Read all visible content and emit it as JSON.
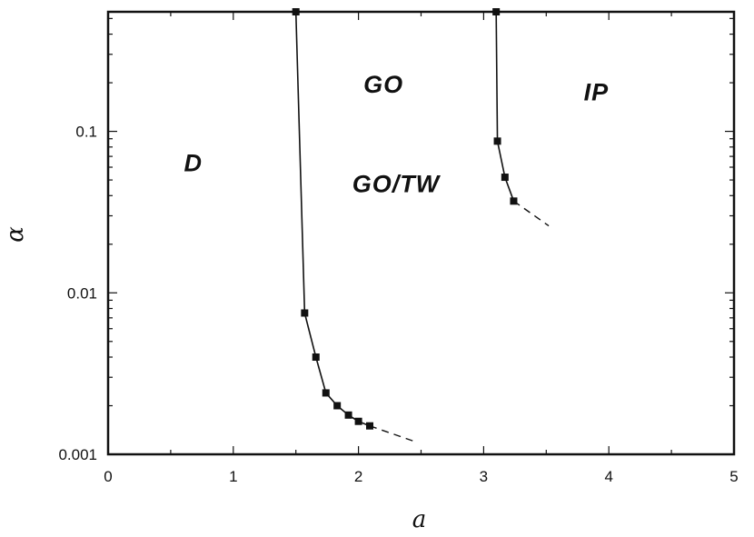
{
  "chart_data": {
    "type": "line",
    "xlabel": "a",
    "ylabel": "α",
    "xlim": [
      0,
      5
    ],
    "ylim": [
      0.001,
      0.55
    ],
    "y_scale": "log",
    "x_ticks": [
      {
        "value": 0,
        "label": "0"
      },
      {
        "value": 1,
        "label": "1"
      },
      {
        "value": 2,
        "label": "2"
      },
      {
        "value": 3,
        "label": "3"
      },
      {
        "value": 4,
        "label": "4"
      },
      {
        "value": 5,
        "label": "5"
      }
    ],
    "y_ticks": [
      {
        "value": 0.001,
        "label": "0.001"
      },
      {
        "value": 0.01,
        "label": "0.01"
      },
      {
        "value": 0.1,
        "label": "0.1"
      }
    ],
    "grid": false,
    "series": [
      {
        "points": [
          {
            "x": 1.5,
            "y": 0.55
          },
          {
            "x": 1.57,
            "y": 0.0075
          },
          {
            "x": 1.66,
            "y": 0.004
          },
          {
            "x": 1.74,
            "y": 0.0024
          },
          {
            "x": 1.83,
            "y": 0.002
          },
          {
            "x": 1.92,
            "y": 0.00175
          },
          {
            "x": 2.0,
            "y": 0.0016
          },
          {
            "x": 2.09,
            "y": 0.0015
          }
        ],
        "extrapolation": [
          {
            "x": 2.09,
            "y": 0.0015
          },
          {
            "x": 2.45,
            "y": 0.0012
          }
        ]
      },
      {
        "points": [
          {
            "x": 3.1,
            "y": 0.55
          },
          {
            "x": 3.11,
            "y": 0.087
          },
          {
            "x": 3.17,
            "y": 0.052
          },
          {
            "x": 3.24,
            "y": 0.037
          }
        ],
        "extrapolation": [
          {
            "x": 3.24,
            "y": 0.037
          },
          {
            "x": 3.52,
            "y": 0.026
          }
        ]
      }
    ],
    "annotations": [
      {
        "text": "D",
        "x": 0.68,
        "y": 0.062
      },
      {
        "text": "GO",
        "x": 2.2,
        "y": 0.19
      },
      {
        "text": "GO/TW",
        "x": 2.3,
        "y": 0.046
      },
      {
        "text": "IP",
        "x": 3.9,
        "y": 0.17
      }
    ]
  },
  "colors": {
    "line": "#111111",
    "marker": "#111111",
    "frame": "#111111"
  }
}
